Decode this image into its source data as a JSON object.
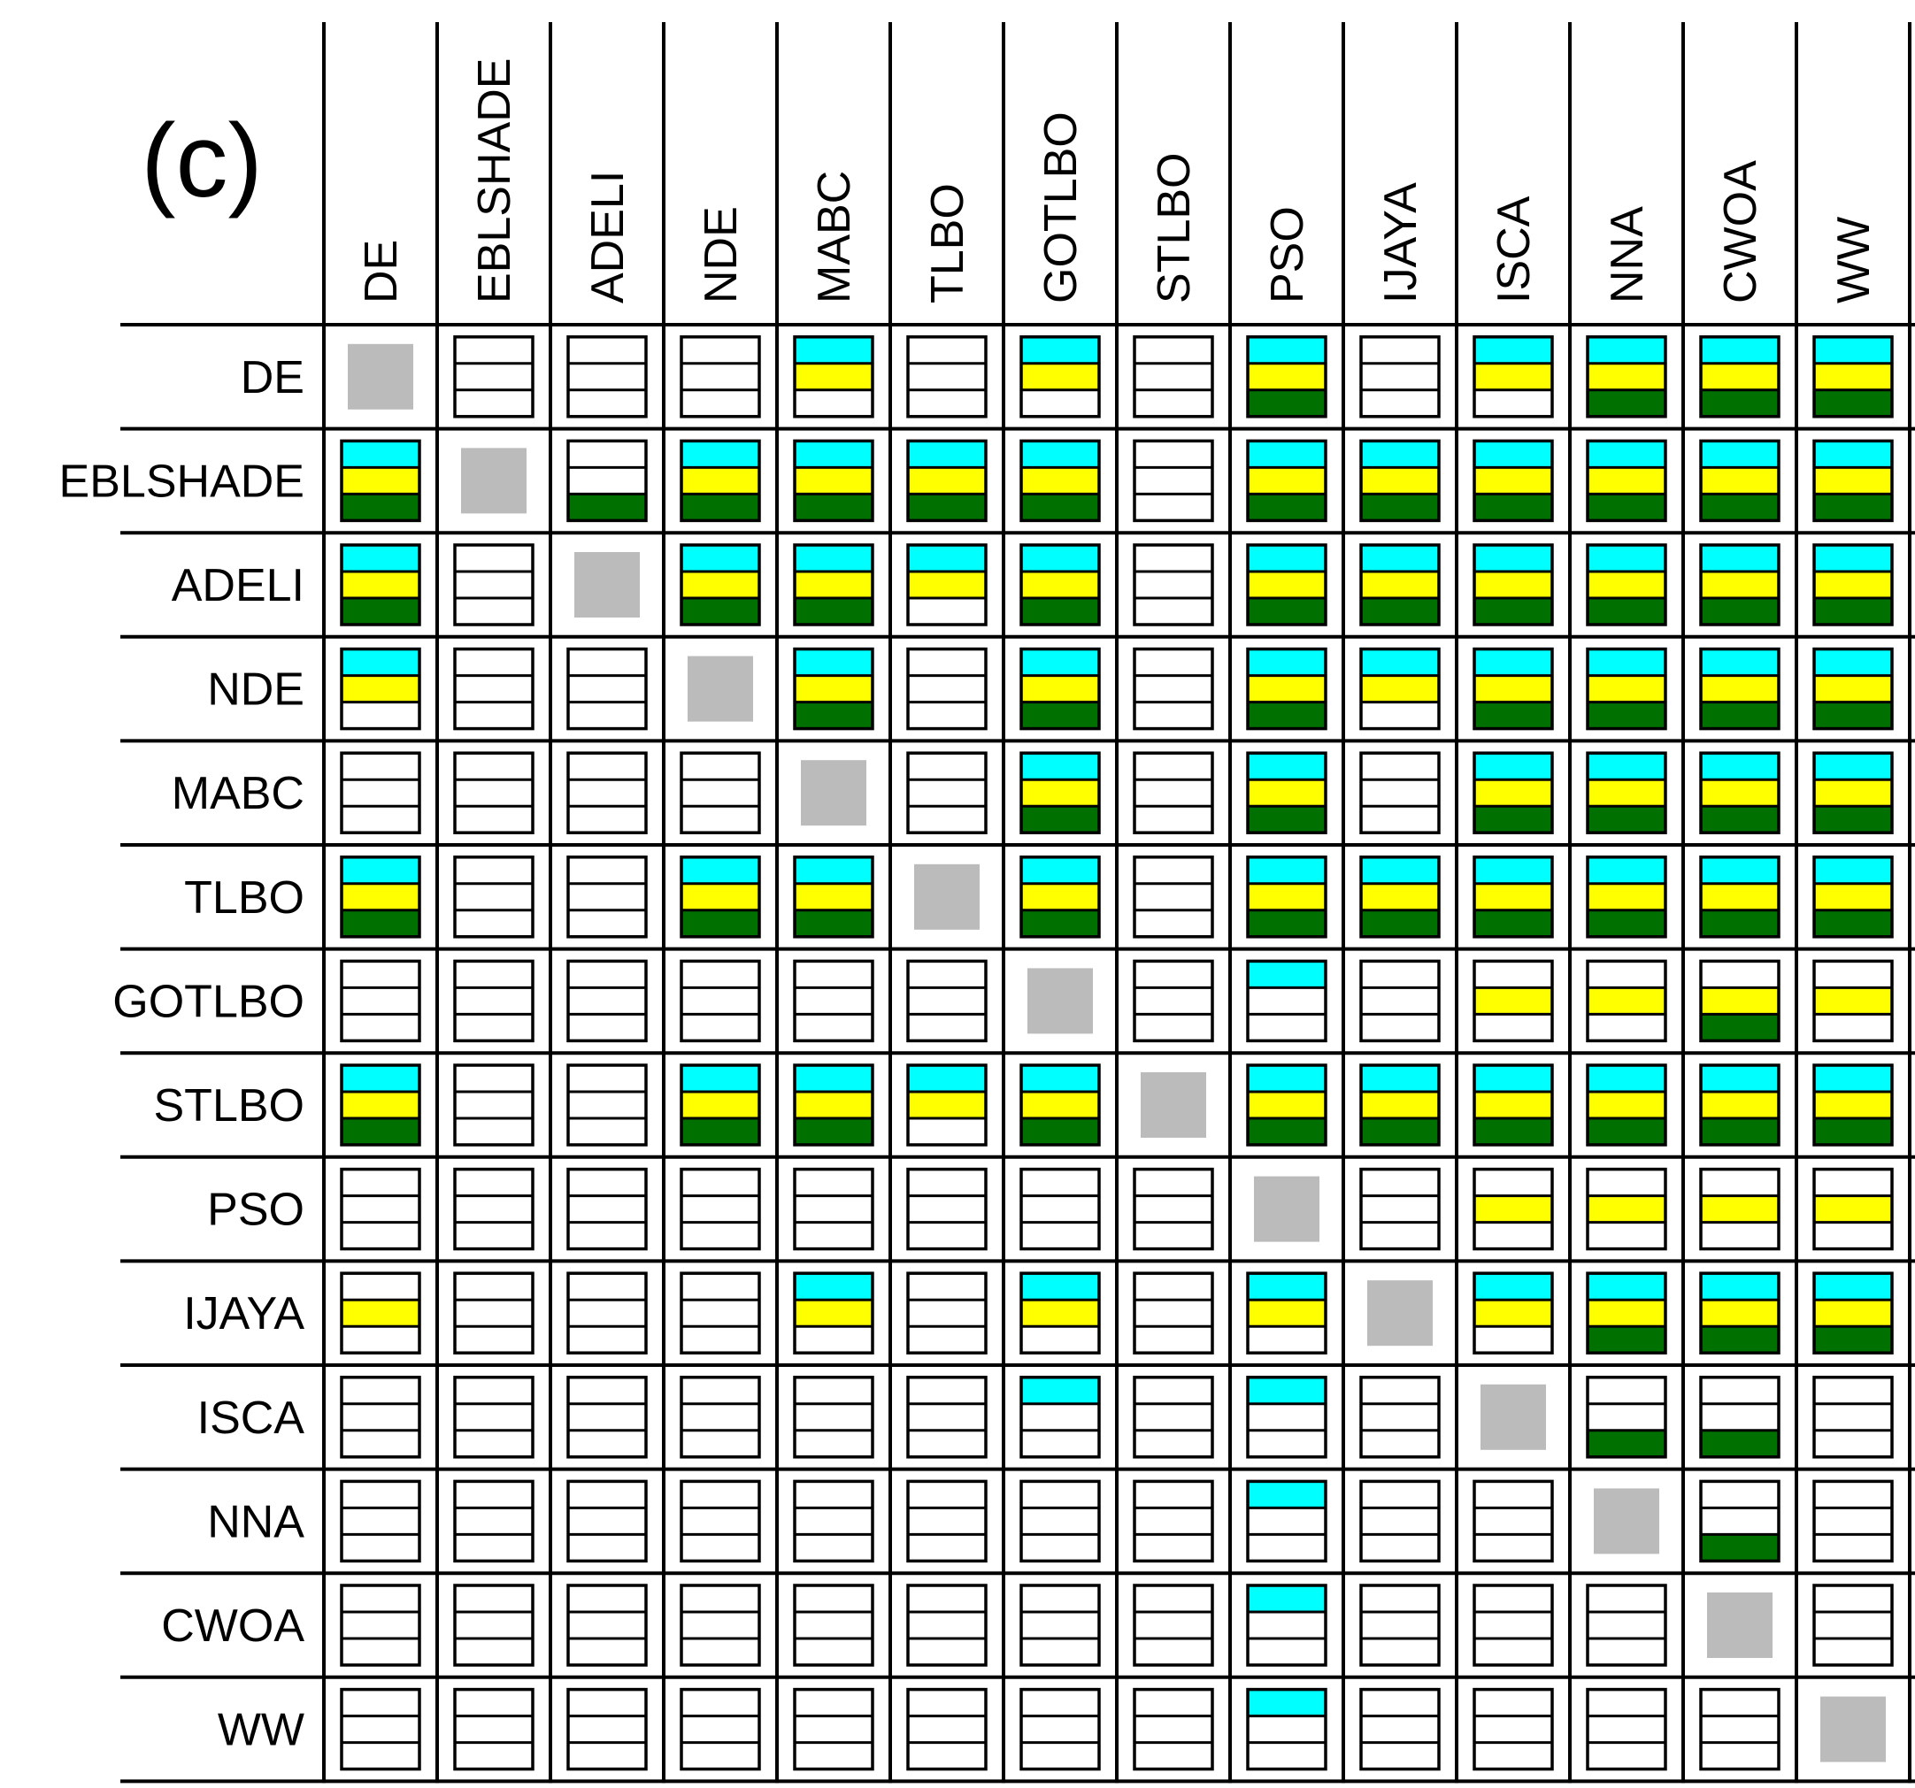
{
  "chart_data": {
    "type": "heatmap",
    "panel_label": "(c)",
    "algorithms": [
      "DE",
      "EBLSHADE",
      "ADELI",
      "NDE",
      "MABC",
      "TLBO",
      "GOTLBO",
      "STLBO",
      "PSO",
      "IJAYA",
      "ISCA",
      "NNA",
      "CWOA",
      "WW"
    ],
    "band_order": [
      "top",
      "middle",
      "bottom"
    ],
    "band_colors": {
      "top": "#00ffff",
      "middle": "#ffff00",
      "bottom": "#007000",
      "empty": "#ffffff",
      "diagonal": "#bbbbbb"
    },
    "cells": [
      [
        "d",
        "000",
        "000",
        "000",
        "110",
        "000",
        "110",
        "000",
        "111",
        "000",
        "110",
        "111",
        "111",
        "111"
      ],
      [
        "111",
        "d",
        "001",
        "111",
        "111",
        "111",
        "111",
        "000",
        "111",
        "111",
        "111",
        "111",
        "111",
        "111"
      ],
      [
        "111",
        "000",
        "d",
        "111",
        "111",
        "110",
        "111",
        "000",
        "111",
        "111",
        "111",
        "111",
        "111",
        "111"
      ],
      [
        "110",
        "000",
        "000",
        "d",
        "111",
        "000",
        "111",
        "000",
        "111",
        "110",
        "111",
        "111",
        "111",
        "111"
      ],
      [
        "000",
        "000",
        "000",
        "000",
        "d",
        "000",
        "111",
        "000",
        "111",
        "000",
        "111",
        "111",
        "111",
        "111"
      ],
      [
        "111",
        "000",
        "000",
        "111",
        "111",
        "d",
        "111",
        "000",
        "111",
        "111",
        "111",
        "111",
        "111",
        "111"
      ],
      [
        "000",
        "000",
        "000",
        "000",
        "000",
        "000",
        "d",
        "000",
        "100",
        "000",
        "010",
        "010",
        "011",
        "010"
      ],
      [
        "111",
        "000",
        "000",
        "111",
        "111",
        "110",
        "111",
        "d",
        "111",
        "111",
        "111",
        "111",
        "111",
        "111"
      ],
      [
        "000",
        "000",
        "000",
        "000",
        "000",
        "000",
        "000",
        "000",
        "d",
        "000",
        "010",
        "010",
        "010",
        "010"
      ],
      [
        "010",
        "000",
        "000",
        "000",
        "110",
        "000",
        "110",
        "000",
        "110",
        "d",
        "110",
        "111",
        "111",
        "111"
      ],
      [
        "000",
        "000",
        "000",
        "000",
        "000",
        "000",
        "100",
        "000",
        "100",
        "000",
        "d",
        "001",
        "001",
        "000"
      ],
      [
        "000",
        "000",
        "000",
        "000",
        "000",
        "000",
        "000",
        "000",
        "100",
        "000",
        "000",
        "d",
        "001",
        "000"
      ],
      [
        "000",
        "000",
        "000",
        "000",
        "000",
        "000",
        "000",
        "000",
        "100",
        "000",
        "000",
        "000",
        "d",
        "000"
      ],
      [
        "000",
        "000",
        "000",
        "000",
        "000",
        "000",
        "000",
        "000",
        "100",
        "000",
        "000",
        "000",
        "000",
        "d"
      ]
    ]
  }
}
